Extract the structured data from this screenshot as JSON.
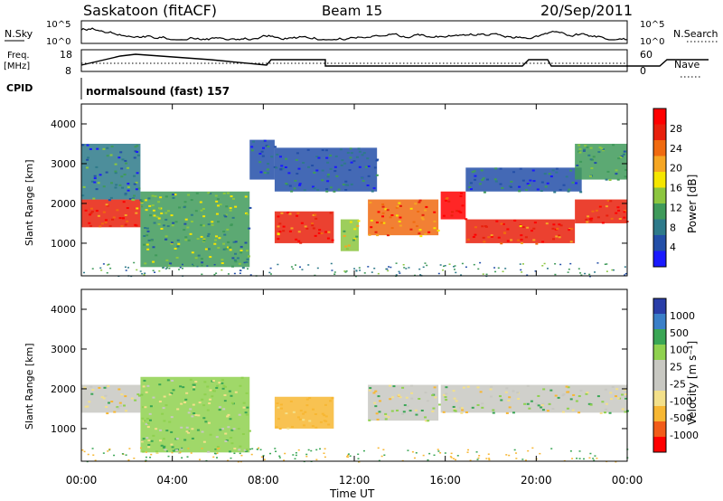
{
  "header": {
    "station": "Saskatoon (fitACF)",
    "beam": "Beam 15",
    "date": "20/Sep/2011"
  },
  "noise_panel": {
    "left_label": "N.Sky",
    "left_ticks": [
      "10^5",
      "10^0"
    ],
    "right_label": "N.Search",
    "right_ticks": [
      "10^5",
      "10^0"
    ]
  },
  "freq_panel": {
    "left_label_1": "Freq.",
    "left_label_2": "[MHz]",
    "left_ticks": [
      "18",
      "8"
    ],
    "right_label": "Nave",
    "right_ticks": [
      "60",
      "0"
    ]
  },
  "cpid": {
    "label": "CPID",
    "value": "normalsound (fast) 157"
  },
  "colors": {
    "power_scale": [
      "#1a1aff",
      "#234fa8",
      "#2e7a8a",
      "#3f9a5a",
      "#8cc63f",
      "#f5e600",
      "#f5a623",
      "#f06a10",
      "#e8200c",
      "#ff0000"
    ],
    "velocity_scale": [
      "#ff0000",
      "#f25c19",
      "#f7b733",
      "#f3e08a",
      "#c8c8c2",
      "#c8c8c2",
      "#8fd14f",
      "#3aa655",
      "#3a7fc8",
      "#2a3ea8"
    ]
  },
  "chart_data": [
    {
      "type": "heatmap",
      "title": "Power",
      "xlabel": "Time UT",
      "ylabel": "Slant Range [km]",
      "colorbar_label": "Power [dB]",
      "colorbar_ticks": [
        "28",
        "24",
        "20",
        "16",
        "12",
        "8",
        "4"
      ],
      "x_ticks": [
        "00:00",
        "04:00",
        "08:00",
        "12:00",
        "16:00",
        "20:00",
        "00:00"
      ],
      "y_ticks": [
        "4000",
        "3000",
        "2000",
        "1000"
      ],
      "xlim": [
        0,
        24
      ],
      "ylim": [
        180,
        4500
      ],
      "echo_regions": [
        {
          "t0": 0.0,
          "t1": 2.6,
          "r0": 1400,
          "r1": 2100,
          "power_db": 26
        },
        {
          "t0": 0.0,
          "t1": 2.6,
          "r0": 2100,
          "r1": 3500,
          "power_db": 8
        },
        {
          "t0": 2.6,
          "t1": 7.4,
          "r0": 400,
          "r1": 2300,
          "power_db": 12
        },
        {
          "t0": 7.4,
          "t1": 8.5,
          "r0": 2600,
          "r1": 3600,
          "power_db": 6
        },
        {
          "t0": 8.5,
          "t1": 11.1,
          "r0": 1000,
          "r1": 1800,
          "power_db": 26
        },
        {
          "t0": 8.5,
          "t1": 13.0,
          "r0": 2300,
          "r1": 3400,
          "power_db": 6
        },
        {
          "t0": 11.4,
          "t1": 12.2,
          "r0": 800,
          "r1": 1600,
          "power_db": 14
        },
        {
          "t0": 12.6,
          "t1": 15.7,
          "r0": 1200,
          "r1": 2100,
          "power_db": 24
        },
        {
          "t0": 15.8,
          "t1": 16.9,
          "r0": 1600,
          "r1": 2300,
          "power_db": 30
        },
        {
          "t0": 16.9,
          "t1": 21.7,
          "r0": 1000,
          "r1": 1600,
          "power_db": 26
        },
        {
          "t0": 16.9,
          "t1": 22.0,
          "r0": 2300,
          "r1": 2900,
          "power_db": 6
        },
        {
          "t0": 21.7,
          "t1": 24.0,
          "r0": 1500,
          "r1": 2100,
          "power_db": 26
        },
        {
          "t0": 21.7,
          "t1": 24.0,
          "r0": 2600,
          "r1": 3500,
          "power_db": 10
        }
      ]
    },
    {
      "type": "heatmap",
      "title": "Velocity",
      "xlabel": "Time UT",
      "ylabel": "Slant Range [km]",
      "colorbar_label": "Velocity [m s⁻¹]",
      "colorbar_ticks": [
        "1000",
        "500",
        "100",
        "25",
        "-25",
        "-100",
        "-500",
        "-1000"
      ],
      "x_ticks": [
        "00:00",
        "04:00",
        "08:00",
        "12:00",
        "16:00",
        "20:00",
        "00:00"
      ],
      "y_ticks": [
        "4000",
        "3000",
        "2000",
        "1000"
      ],
      "xlim": [
        0,
        24
      ],
      "ylim": [
        180,
        4500
      ],
      "echo_regions": [
        {
          "t0": 0.0,
          "t1": 2.6,
          "r0": 1400,
          "r1": 2100,
          "velocity": 0
        },
        {
          "t0": 2.6,
          "t1": 7.4,
          "r0": 400,
          "r1": 2300,
          "velocity": 50
        },
        {
          "t0": 8.5,
          "t1": 11.1,
          "r0": 1000,
          "r1": 1800,
          "velocity": -200
        },
        {
          "t0": 12.6,
          "t1": 15.7,
          "r0": 1200,
          "r1": 2100,
          "velocity": 0
        },
        {
          "t0": 15.8,
          "t1": 24.0,
          "r0": 1400,
          "r1": 2100,
          "velocity": 0
        }
      ]
    }
  ]
}
